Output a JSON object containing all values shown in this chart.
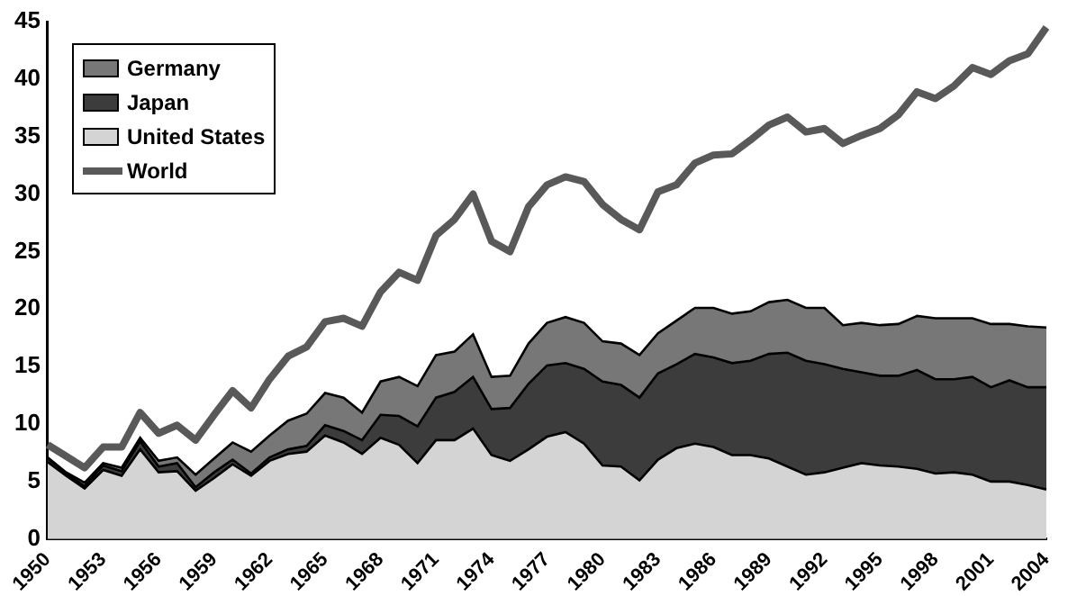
{
  "chart_data": {
    "type": "area",
    "stacked": true,
    "legend": "top left",
    "grid": false,
    "categories": [
      "1950",
      null,
      null,
      "1953",
      null,
      null,
      "1956",
      null,
      null,
      "1959",
      null,
      null,
      "1962",
      null,
      null,
      "1965",
      null,
      null,
      "1968",
      null,
      null,
      "1971",
      null,
      null,
      "1974",
      null,
      null,
      "1977",
      null,
      null,
      "1980",
      null,
      null,
      "1983",
      null,
      null,
      "1986",
      null,
      null,
      "1989",
      null,
      null,
      "1992",
      null,
      null,
      "1995",
      null,
      null,
      "1998",
      null,
      null,
      "2001",
      null,
      null,
      "2004"
    ],
    "ylim": [
      0,
      45
    ],
    "yticks": [
      0,
      5,
      10,
      15,
      20,
      25,
      30,
      35,
      40,
      45
    ],
    "series": [
      {
        "name": "United States",
        "color": "#d4d4d4",
        "values": [
          6.7,
          5.5,
          4.4,
          6.0,
          5.5,
          7.8,
          5.8,
          5.9,
          4.2,
          5.3,
          6.5,
          5.5,
          6.8,
          7.4,
          7.6,
          9.0,
          8.4,
          7.4,
          8.8,
          8.2,
          6.6,
          8.6,
          8.6,
          9.6,
          7.3,
          6.8,
          7.8,
          8.9,
          9.3,
          8.3,
          6.4,
          6.3,
          5.1,
          6.9,
          7.9,
          8.3,
          8.0,
          7.3,
          7.3,
          7.0,
          6.3,
          5.6,
          5.8,
          6.2,
          6.6,
          6.4,
          6.3,
          6.1,
          5.7,
          5.8,
          5.6,
          5.0,
          5.0,
          4.7,
          4.3
        ]
      },
      {
        "name": "Japan",
        "color": "#3c3c3c",
        "values": [
          0.3,
          0.2,
          0.2,
          0.4,
          0.4,
          0.7,
          0.5,
          0.7,
          0.3,
          0.5,
          0.4,
          0.2,
          0.3,
          0.4,
          0.5,
          0.9,
          1.0,
          1.2,
          2.0,
          2.5,
          3.2,
          3.7,
          4.2,
          4.5,
          4.0,
          4.6,
          5.7,
          6.2,
          6.0,
          6.5,
          7.3,
          7.1,
          7.2,
          7.5,
          7.3,
          7.8,
          7.8,
          8.0,
          8.2,
          9.1,
          9.9,
          9.9,
          9.4,
          8.6,
          7.9,
          7.8,
          7.9,
          8.6,
          8.2,
          8.1,
          8.5,
          8.2,
          8.8,
          8.5,
          8.9
        ]
      },
      {
        "name": "Germany",
        "color": "#777777",
        "values": [
          0.1,
          0.1,
          0.3,
          0.2,
          0.3,
          0.3,
          0.5,
          0.5,
          1.1,
          1.2,
          1.5,
          1.9,
          1.9,
          2.5,
          2.8,
          2.8,
          2.9,
          2.4,
          2.9,
          3.4,
          3.5,
          3.7,
          3.5,
          3.7,
          2.8,
          2.8,
          3.5,
          3.7,
          4.0,
          4.0,
          3.5,
          3.6,
          3.7,
          3.5,
          3.8,
          4.0,
          4.3,
          4.3,
          4.3,
          4.5,
          4.6,
          4.6,
          4.9,
          3.8,
          4.3,
          4.4,
          4.5,
          4.7,
          5.3,
          5.3,
          5.1,
          5.5,
          4.9,
          5.3,
          5.2
        ]
      },
      {
        "name": "World",
        "type": "line",
        "color": "#595959",
        "values": [
          8.2,
          7.2,
          6.2,
          8.0,
          8.0,
          11.0,
          9.2,
          9.9,
          8.6,
          10.8,
          12.9,
          11.4,
          13.9,
          15.9,
          16.7,
          18.9,
          19.2,
          18.5,
          21.5,
          23.2,
          22.5,
          26.4,
          27.8,
          30.0,
          25.9,
          25.0,
          28.9,
          30.8,
          31.5,
          31.1,
          29.1,
          27.8,
          26.9,
          30.2,
          30.8,
          32.7,
          33.4,
          33.5,
          34.7,
          36.0,
          36.7,
          35.4,
          35.7,
          34.4,
          35.1,
          35.7,
          36.9,
          38.9,
          38.3,
          39.4,
          41.0,
          40.4,
          41.6,
          42.2,
          44.5
        ]
      }
    ]
  }
}
